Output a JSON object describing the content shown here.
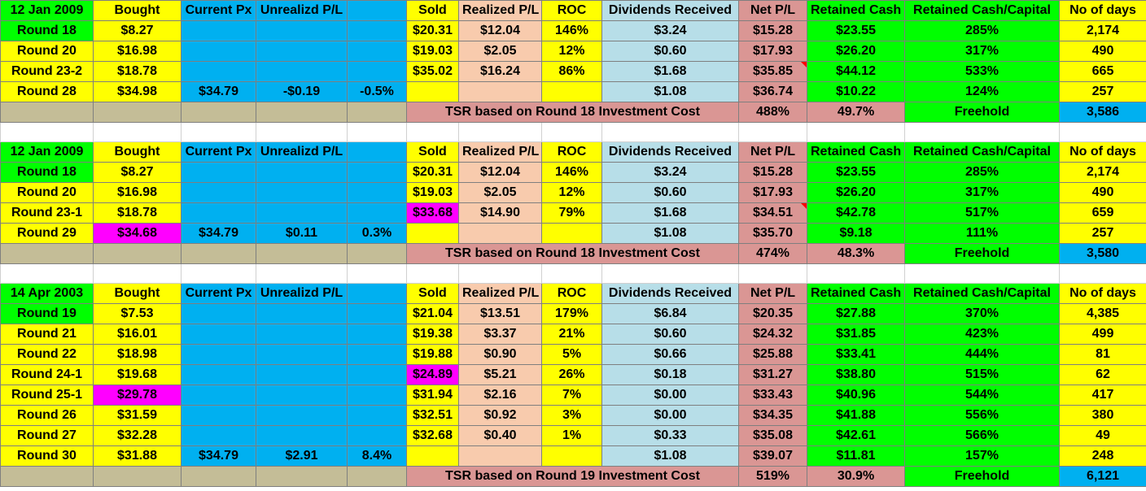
{
  "colors": {
    "green": "#00ff00",
    "yellow": "#ffff00",
    "blue": "#00b0f0",
    "peach": "#f8cbad",
    "light_blue": "#b7dee8",
    "rose": "#da9694",
    "tan": "#c4bd97",
    "magenta": "#ff00ff",
    "negative": "#ff0000"
  },
  "blocks": [
    {
      "header": [
        "12 Jan 2009",
        "Bought",
        "Current Px",
        "Unrealizd P/L",
        "",
        "Sold",
        "Realized P/L",
        "ROC",
        "Dividends Received",
        "Net P/L",
        "Retained Cash",
        "Retained Cash/Capital",
        "No of days"
      ],
      "rows": [
        {
          "round": "Round 18",
          "bought": "$8.27",
          "current": "",
          "unreal": "",
          "unreal_pct": "",
          "sold": "$20.31",
          "realized": "$12.04",
          "roc": "146%",
          "div": "$3.24",
          "net": "$15.28",
          "retained": "$23.55",
          "ratio": "285%",
          "days": "2,174"
        },
        {
          "round": "Round 20",
          "bought": "$16.98",
          "current": "",
          "unreal": "",
          "unreal_pct": "",
          "sold": "$19.03",
          "realized": "$2.05",
          "roc": "12%",
          "div": "$0.60",
          "net": "$17.93",
          "retained": "$26.20",
          "ratio": "317%",
          "days": "490"
        },
        {
          "round": "Round 23-2",
          "bought": "$18.78",
          "current": "",
          "unreal": "",
          "unreal_pct": "",
          "sold": "$35.02",
          "realized": "$16.24",
          "roc": "86%",
          "div": "$1.68",
          "net": "$35.85",
          "retained": "$44.12",
          "ratio": "533%",
          "days": "665"
        },
        {
          "round": "Round 28",
          "bought": "$34.98",
          "current": "$34.79",
          "unreal": "-$0.19",
          "unreal_pct": "-0.5%",
          "sold": "",
          "realized": "",
          "roc": "",
          "div": "$1.08",
          "net": "$36.74",
          "retained": "$10.22",
          "ratio": "124%",
          "days": "257"
        }
      ],
      "summary": {
        "label": "TSR based on Round 18 Investment Cost",
        "tsr": "488%",
        "annual": "49.7%",
        "freehold": "Freehold",
        "days": "3,586"
      }
    },
    {
      "header": [
        "12 Jan 2009",
        "Bought",
        "Current Px",
        "Unrealizd P/L",
        "",
        "Sold",
        "Realized P/L",
        "ROC",
        "Dividends Received",
        "Net P/L",
        "Retained Cash",
        "Retained Cash/Capital",
        "No of days"
      ],
      "rows": [
        {
          "round": "Round 18",
          "bought": "$8.27",
          "current": "",
          "unreal": "",
          "unreal_pct": "",
          "sold": "$20.31",
          "realized": "$12.04",
          "roc": "146%",
          "div": "$3.24",
          "net": "$15.28",
          "retained": "$23.55",
          "ratio": "285%",
          "days": "2,174"
        },
        {
          "round": "Round 20",
          "bought": "$16.98",
          "current": "",
          "unreal": "",
          "unreal_pct": "",
          "sold": "$19.03",
          "realized": "$2.05",
          "roc": "12%",
          "div": "$0.60",
          "net": "$17.93",
          "retained": "$26.20",
          "ratio": "317%",
          "days": "490"
        },
        {
          "round": "Round 23-1",
          "bought": "$18.78",
          "current": "",
          "unreal": "",
          "unreal_pct": "",
          "sold": "$33.68",
          "realized": "$14.90",
          "roc": "79%",
          "div": "$1.68",
          "net": "$34.51",
          "retained": "$42.78",
          "ratio": "517%",
          "days": "659"
        },
        {
          "round": "Round 29",
          "bought": "$34.68",
          "current": "$34.79",
          "unreal": "$0.11",
          "unreal_pct": "0.3%",
          "sold": "",
          "realized": "",
          "roc": "",
          "div": "$1.08",
          "net": "$35.70",
          "retained": "$9.18",
          "ratio": "111%",
          "days": "257"
        }
      ],
      "summary": {
        "label": "TSR based on Round 18 Investment Cost",
        "tsr": "474%",
        "annual": "48.3%",
        "freehold": "Freehold",
        "days": "3,580"
      }
    },
    {
      "header": [
        "14 Apr 2003",
        "Bought",
        "Current Px",
        "Unrealizd P/L",
        "",
        "Sold",
        "Realized P/L",
        "ROC",
        "Dividends Received",
        "Net P/L",
        "Retained Cash",
        "Retained Cash/Capital",
        "No of days"
      ],
      "rows": [
        {
          "round": "Round 19",
          "bought": "$7.53",
          "current": "",
          "unreal": "",
          "unreal_pct": "",
          "sold": "$21.04",
          "realized": "$13.51",
          "roc": "179%",
          "div": "$6.84",
          "net": "$20.35",
          "retained": "$27.88",
          "ratio": "370%",
          "days": "4,385"
        },
        {
          "round": "Round 21",
          "bought": "$16.01",
          "current": "",
          "unreal": "",
          "unreal_pct": "",
          "sold": "$19.38",
          "realized": "$3.37",
          "roc": "21%",
          "div": "$0.60",
          "net": "$24.32",
          "retained": "$31.85",
          "ratio": "423%",
          "days": "499"
        },
        {
          "round": "Round 22",
          "bought": "$18.98",
          "current": "",
          "unreal": "",
          "unreal_pct": "",
          "sold": "$19.88",
          "realized": "$0.90",
          "roc": "5%",
          "div": "$0.66",
          "net": "$25.88",
          "retained": "$33.41",
          "ratio": "444%",
          "days": "81"
        },
        {
          "round": "Round 24-1",
          "bought": "$19.68",
          "current": "",
          "unreal": "",
          "unreal_pct": "",
          "sold": "$24.89",
          "realized": "$5.21",
          "roc": "26%",
          "div": "$0.18",
          "net": "$31.27",
          "retained": "$38.80",
          "ratio": "515%",
          "days": "62"
        },
        {
          "round": "Round 25-1",
          "bought": "$29.78",
          "current": "",
          "unreal": "",
          "unreal_pct": "",
          "sold": "$31.94",
          "realized": "$2.16",
          "roc": "7%",
          "div": "$0.00",
          "net": "$33.43",
          "retained": "$40.96",
          "ratio": "544%",
          "days": "417"
        },
        {
          "round": "Round 26",
          "bought": "$31.59",
          "current": "",
          "unreal": "",
          "unreal_pct": "",
          "sold": "$32.51",
          "realized": "$0.92",
          "roc": "3%",
          "div": "$0.00",
          "net": "$34.35",
          "retained": "$41.88",
          "ratio": "556%",
          "days": "380"
        },
        {
          "round": "Round 27",
          "bought": "$32.28",
          "current": "",
          "unreal": "",
          "unreal_pct": "",
          "sold": "$32.68",
          "realized": "$0.40",
          "roc": "1%",
          "div": "$0.33",
          "net": "$35.08",
          "retained": "$42.61",
          "ratio": "566%",
          "days": "49"
        },
        {
          "round": "Round 30",
          "bought": "$31.88",
          "current": "$34.79",
          "unreal": "$2.91",
          "unreal_pct": "8.4%",
          "sold": "",
          "realized": "",
          "roc": "",
          "div": "$1.08",
          "net": "$39.07",
          "retained": "$11.81",
          "ratio": "157%",
          "days": "248"
        }
      ],
      "summary": {
        "label": "TSR based on Round 19 Investment Cost",
        "tsr": "519%",
        "annual": "30.9%",
        "freehold": "Freehold",
        "days": "6,121"
      }
    }
  ]
}
